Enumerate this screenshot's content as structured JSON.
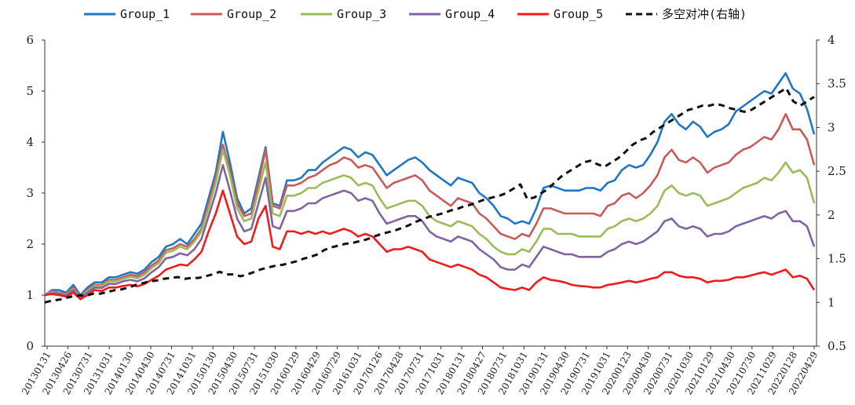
{
  "chart_data": {
    "type": "line",
    "title": "",
    "xlabel": "",
    "ylabel": "",
    "ylim": [
      0,
      6
    ],
    "y2lim": [
      0.5,
      4
    ],
    "yticks": [
      0,
      1,
      2,
      3,
      4,
      5,
      6
    ],
    "y2ticks": [
      "0.5",
      "1",
      "1.5",
      "2",
      "2.5",
      "3",
      "3.5",
      "4"
    ],
    "legend_position": "top",
    "x_tick_labels": [
      "20130131",
      "20130426",
      "20130731",
      "20131031",
      "20140130",
      "20140430",
      "20140731",
      "20141031",
      "20150130",
      "20150430",
      "20150731",
      "20151030",
      "20160129",
      "20160429",
      "20160729",
      "20161031",
      "20170126",
      "20170428",
      "20170731",
      "20171031",
      "20180131",
      "20180427",
      "20180731",
      "20181031",
      "20190131",
      "20190430",
      "20190731",
      "20191031",
      "20200123",
      "20200430",
      "20200731",
      "20201030",
      "20210129",
      "20210430",
      "20210730",
      "20211029",
      "20220128",
      "20220429"
    ],
    "series": [
      {
        "name": "Group_1",
        "color": "#1f77c4",
        "axis": "left",
        "values": [
          1.0,
          1.1,
          1.1,
          1.05,
          1.2,
          1.0,
          1.15,
          1.25,
          1.25,
          1.35,
          1.35,
          1.4,
          1.45,
          1.42,
          1.5,
          1.65,
          1.75,
          1.95,
          2.0,
          2.1,
          2.0,
          2.2,
          2.4,
          2.9,
          3.4,
          4.2,
          3.6,
          2.9,
          2.6,
          2.7,
          3.3,
          3.9,
          2.8,
          2.75,
          3.25,
          3.25,
          3.3,
          3.45,
          3.45,
          3.6,
          3.7,
          3.8,
          3.9,
          3.85,
          3.7,
          3.8,
          3.75,
          3.55,
          3.35,
          3.45,
          3.55,
          3.65,
          3.7,
          3.6,
          3.45,
          3.35,
          3.25,
          3.15,
          3.3,
          3.25,
          3.2,
          3.0,
          2.9,
          2.75,
          2.55,
          2.5,
          2.4,
          2.45,
          2.4,
          2.7,
          3.1,
          3.15,
          3.1,
          3.05,
          3.05,
          3.05,
          3.1,
          3.1,
          3.05,
          3.2,
          3.25,
          3.45,
          3.55,
          3.5,
          3.55,
          3.75,
          4.0,
          4.4,
          4.55,
          4.35,
          4.25,
          4.4,
          4.3,
          4.1,
          4.2,
          4.25,
          4.35,
          4.6,
          4.7,
          4.8,
          4.9,
          5.0,
          4.95,
          5.15,
          5.35,
          5.05,
          4.95,
          4.65,
          4.15
        ]
      },
      {
        "name": "Group_2",
        "color": "#c85a5a",
        "axis": "left",
        "values": [
          1.0,
          1.08,
          1.05,
          1.02,
          1.15,
          0.98,
          1.1,
          1.2,
          1.2,
          1.3,
          1.3,
          1.35,
          1.4,
          1.37,
          1.45,
          1.58,
          1.68,
          1.88,
          1.92,
          2.0,
          1.95,
          2.1,
          2.3,
          2.8,
          3.3,
          3.95,
          3.45,
          2.8,
          2.55,
          2.6,
          3.2,
          3.85,
          2.75,
          2.7,
          3.15,
          3.15,
          3.2,
          3.3,
          3.35,
          3.45,
          3.55,
          3.6,
          3.7,
          3.65,
          3.5,
          3.55,
          3.5,
          3.3,
          3.1,
          3.2,
          3.25,
          3.3,
          3.35,
          3.25,
          3.05,
          2.95,
          2.85,
          2.75,
          2.9,
          2.85,
          2.8,
          2.6,
          2.5,
          2.35,
          2.2,
          2.15,
          2.1,
          2.2,
          2.15,
          2.4,
          2.7,
          2.7,
          2.65,
          2.6,
          2.6,
          2.6,
          2.6,
          2.6,
          2.55,
          2.75,
          2.8,
          2.95,
          3.0,
          2.9,
          3.0,
          3.15,
          3.35,
          3.7,
          3.85,
          3.65,
          3.6,
          3.7,
          3.6,
          3.4,
          3.5,
          3.55,
          3.6,
          3.75,
          3.85,
          3.9,
          4.0,
          4.1,
          4.05,
          4.25,
          4.55,
          4.25,
          4.25,
          4.05,
          3.55
        ]
      },
      {
        "name": "Group_3",
        "color": "#9bbb59",
        "axis": "left",
        "values": [
          1.0,
          1.06,
          1.04,
          1.0,
          1.12,
          0.97,
          1.08,
          1.18,
          1.18,
          1.27,
          1.27,
          1.32,
          1.36,
          1.33,
          1.4,
          1.53,
          1.63,
          1.83,
          1.87,
          1.95,
          1.9,
          2.05,
          2.25,
          2.7,
          3.2,
          3.85,
          3.35,
          2.7,
          2.45,
          2.5,
          3.05,
          3.6,
          2.6,
          2.55,
          2.95,
          2.95,
          3.0,
          3.1,
          3.1,
          3.2,
          3.25,
          3.3,
          3.35,
          3.3,
          3.15,
          3.2,
          3.15,
          2.9,
          2.7,
          2.75,
          2.8,
          2.85,
          2.85,
          2.75,
          2.55,
          2.45,
          2.4,
          2.35,
          2.45,
          2.4,
          2.35,
          2.2,
          2.1,
          1.95,
          1.85,
          1.8,
          1.8,
          1.9,
          1.85,
          2.05,
          2.3,
          2.3,
          2.2,
          2.2,
          2.2,
          2.15,
          2.15,
          2.15,
          2.15,
          2.3,
          2.35,
          2.45,
          2.5,
          2.45,
          2.5,
          2.6,
          2.75,
          3.05,
          3.15,
          3.0,
          2.95,
          3.0,
          2.95,
          2.75,
          2.8,
          2.85,
          2.9,
          3.0,
          3.1,
          3.15,
          3.2,
          3.3,
          3.25,
          3.4,
          3.6,
          3.4,
          3.45,
          3.3,
          2.8
        ]
      },
      {
        "name": "Group_4",
        "color": "#8064a2",
        "axis": "left",
        "values": [
          1.0,
          1.04,
          1.03,
          0.99,
          1.1,
          0.96,
          1.05,
          1.15,
          1.14,
          1.22,
          1.22,
          1.27,
          1.3,
          1.27,
          1.33,
          1.45,
          1.55,
          1.72,
          1.75,
          1.82,
          1.78,
          1.9,
          2.1,
          2.55,
          3.0,
          3.55,
          3.05,
          2.5,
          2.25,
          2.3,
          2.8,
          3.3,
          2.35,
          2.3,
          2.65,
          2.65,
          2.7,
          2.8,
          2.8,
          2.9,
          2.95,
          3.0,
          3.05,
          3.0,
          2.85,
          2.9,
          2.85,
          2.6,
          2.4,
          2.45,
          2.5,
          2.55,
          2.55,
          2.45,
          2.25,
          2.15,
          2.1,
          2.05,
          2.15,
          2.1,
          2.05,
          1.9,
          1.8,
          1.7,
          1.55,
          1.5,
          1.5,
          1.6,
          1.55,
          1.75,
          1.95,
          1.9,
          1.85,
          1.8,
          1.8,
          1.75,
          1.75,
          1.75,
          1.75,
          1.85,
          1.9,
          2.0,
          2.05,
          2.0,
          2.05,
          2.15,
          2.25,
          2.45,
          2.5,
          2.35,
          2.3,
          2.35,
          2.3,
          2.15,
          2.2,
          2.2,
          2.25,
          2.35,
          2.4,
          2.45,
          2.5,
          2.55,
          2.5,
          2.6,
          2.65,
          2.45,
          2.45,
          2.35,
          1.95
        ]
      },
      {
        "name": "Group_5",
        "color": "#ee1c1c",
        "axis": "left",
        "values": [
          1.0,
          1.02,
          1.0,
          0.97,
          1.05,
          0.92,
          1.0,
          1.1,
          1.08,
          1.15,
          1.15,
          1.18,
          1.2,
          1.17,
          1.22,
          1.3,
          1.38,
          1.5,
          1.55,
          1.6,
          1.58,
          1.7,
          1.85,
          2.25,
          2.6,
          3.05,
          2.6,
          2.15,
          2.0,
          2.05,
          2.5,
          2.75,
          1.95,
          1.9,
          2.25,
          2.25,
          2.2,
          2.25,
          2.2,
          2.25,
          2.2,
          2.25,
          2.3,
          2.25,
          2.15,
          2.2,
          2.15,
          2.0,
          1.85,
          1.9,
          1.9,
          1.95,
          1.9,
          1.85,
          1.7,
          1.65,
          1.6,
          1.55,
          1.6,
          1.55,
          1.5,
          1.4,
          1.35,
          1.25,
          1.15,
          1.12,
          1.1,
          1.15,
          1.1,
          1.25,
          1.35,
          1.3,
          1.28,
          1.25,
          1.2,
          1.18,
          1.17,
          1.15,
          1.15,
          1.2,
          1.22,
          1.25,
          1.28,
          1.25,
          1.28,
          1.32,
          1.35,
          1.45,
          1.45,
          1.38,
          1.35,
          1.35,
          1.32,
          1.25,
          1.28,
          1.28,
          1.3,
          1.35,
          1.35,
          1.38,
          1.42,
          1.45,
          1.4,
          1.45,
          1.5,
          1.35,
          1.38,
          1.32,
          1.1
        ]
      },
      {
        "name": "多空对冲(右轴)",
        "color": "#111111",
        "axis": "right",
        "dashed": true,
        "values": [
          1.0,
          1.02,
          1.03,
          1.05,
          1.07,
          1.08,
          1.08,
          1.1,
          1.1,
          1.12,
          1.14,
          1.15,
          1.17,
          1.2,
          1.22,
          1.24,
          1.25,
          1.27,
          1.28,
          1.29,
          1.27,
          1.28,
          1.28,
          1.3,
          1.32,
          1.35,
          1.32,
          1.32,
          1.3,
          1.32,
          1.35,
          1.38,
          1.4,
          1.42,
          1.43,
          1.45,
          1.47,
          1.5,
          1.52,
          1.55,
          1.6,
          1.63,
          1.65,
          1.67,
          1.68,
          1.7,
          1.72,
          1.75,
          1.78,
          1.8,
          1.82,
          1.85,
          1.88,
          1.92,
          1.95,
          1.98,
          2.0,
          2.02,
          2.05,
          2.07,
          2.1,
          2.12,
          2.15,
          2.18,
          2.2,
          2.22,
          2.25,
          2.3,
          2.35,
          2.18,
          2.2,
          2.25,
          2.3,
          2.38,
          2.45,
          2.5,
          2.55,
          2.6,
          2.62,
          2.58,
          2.55,
          2.6,
          2.65,
          2.72,
          2.8,
          2.85,
          2.88,
          2.95,
          3.0,
          3.05,
          3.1,
          3.15,
          3.2,
          3.22,
          3.25,
          3.25,
          3.27,
          3.25,
          3.22,
          3.2,
          3.18,
          3.2,
          3.25,
          3.3,
          3.35,
          3.4,
          3.45,
          3.3,
          3.25,
          3.3,
          3.35
        ]
      }
    ]
  }
}
